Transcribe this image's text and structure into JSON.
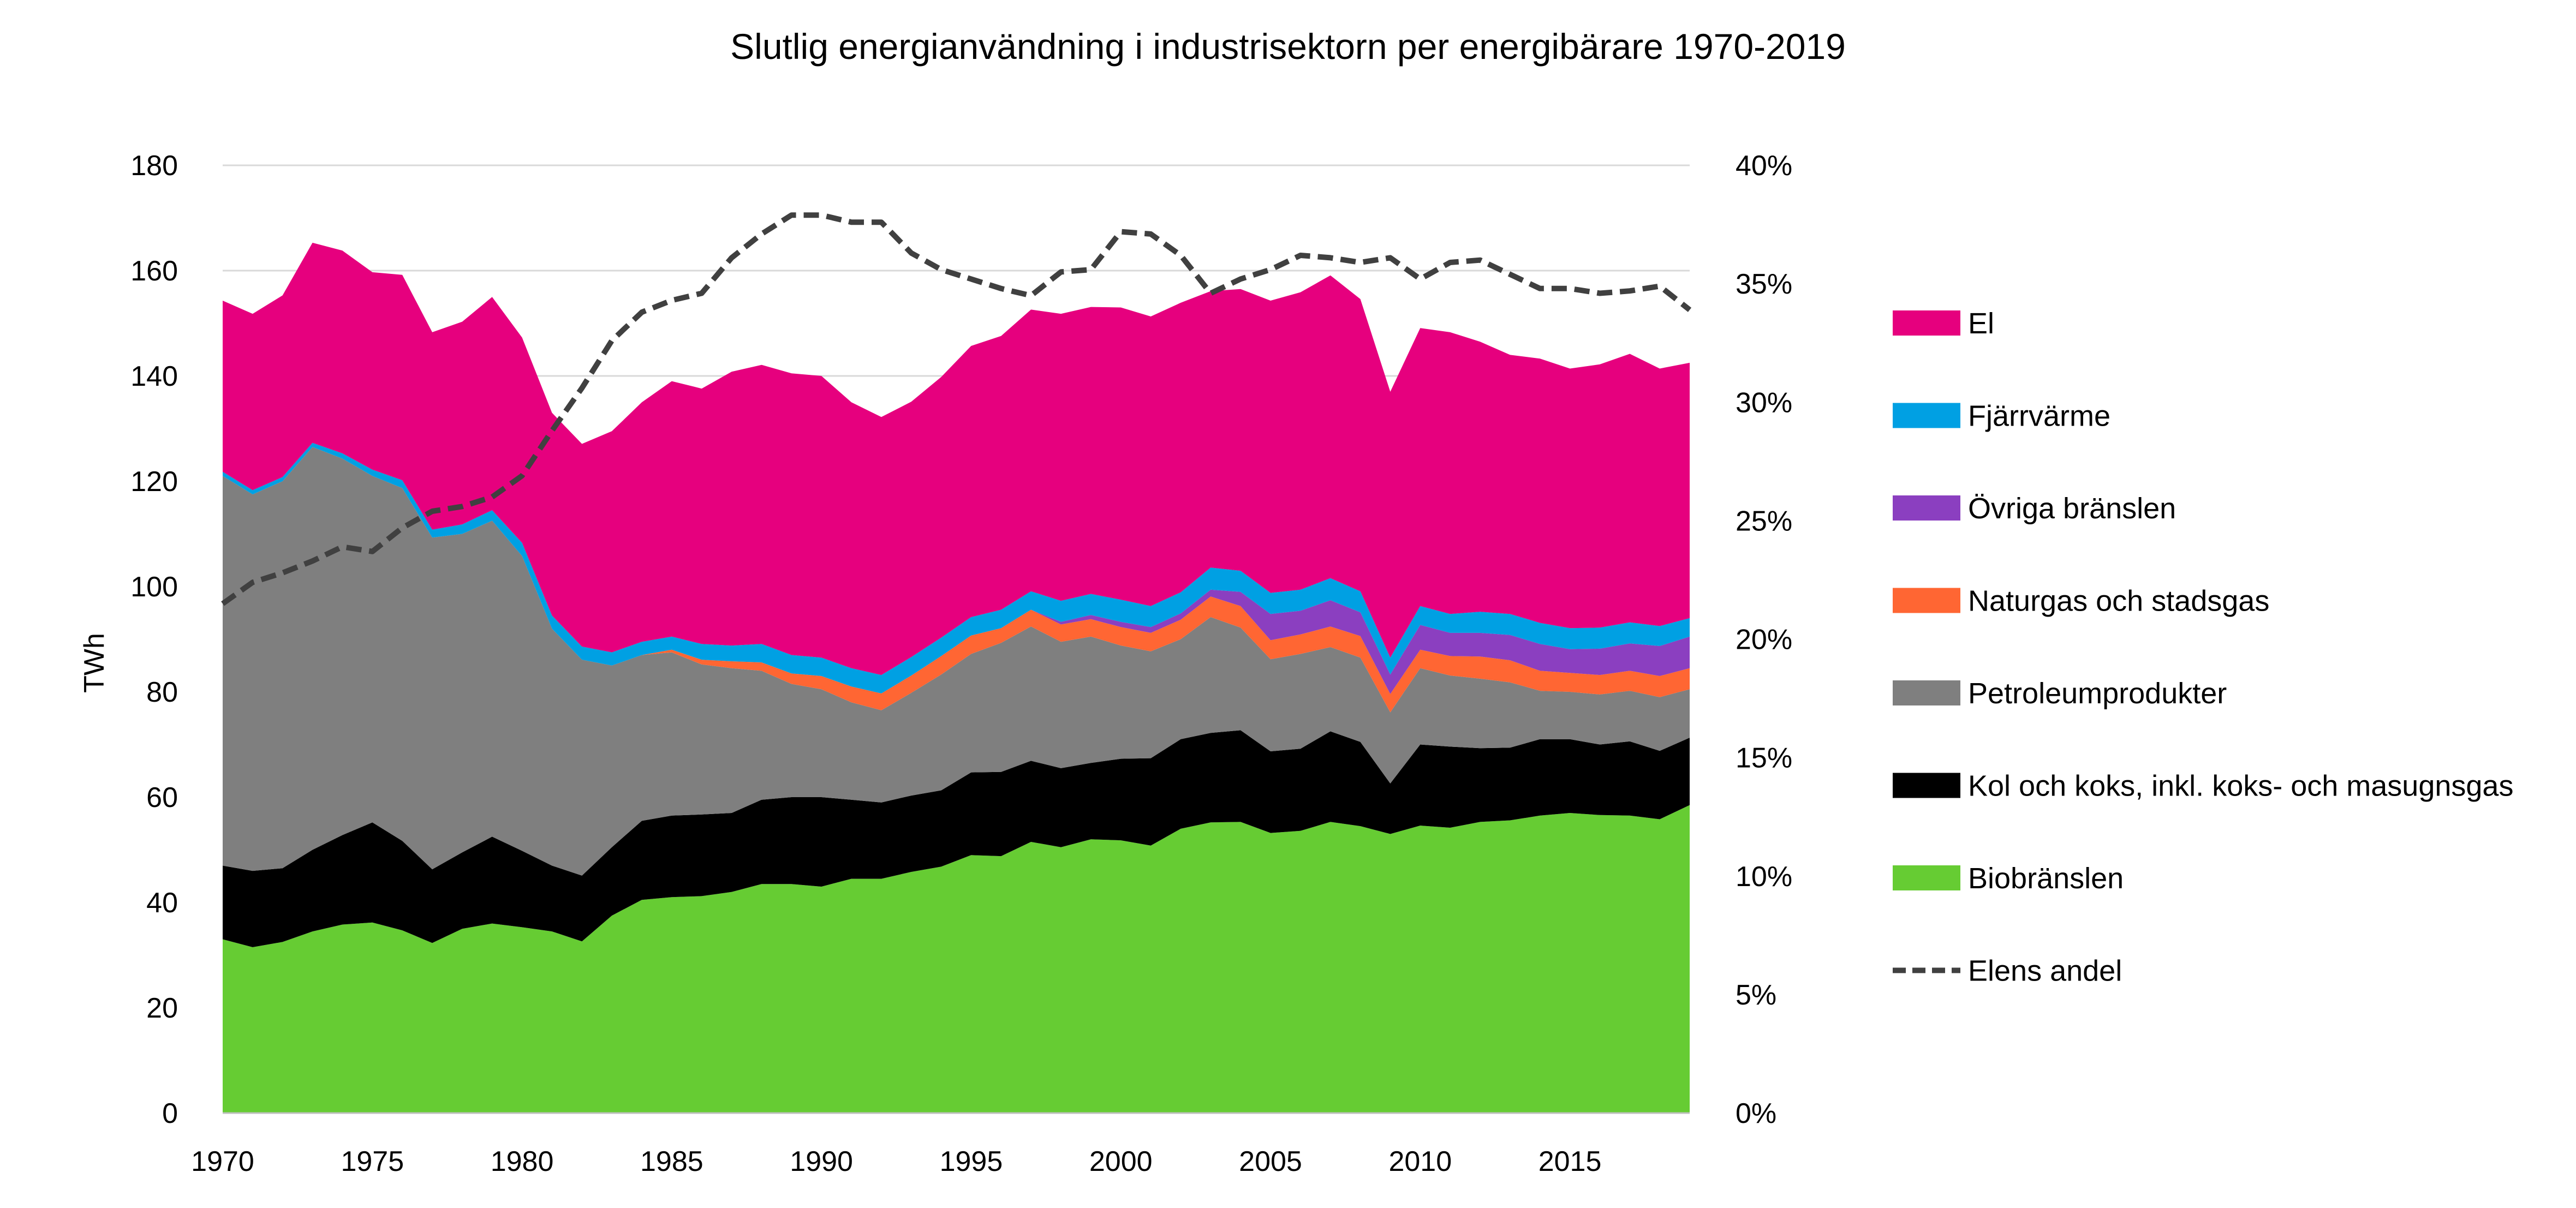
{
  "chart_data": {
    "type": "area",
    "stacked": true,
    "title": "Slutlig energianvändning i industrisektorn per energibärare 1970-2019",
    "ylabel": "TWh",
    "xlabel": "",
    "x": [
      1970,
      1971,
      1972,
      1973,
      1974,
      1975,
      1976,
      1977,
      1978,
      1979,
      1980,
      1981,
      1982,
      1983,
      1984,
      1985,
      1986,
      1987,
      1988,
      1989,
      1990,
      1991,
      1992,
      1993,
      1994,
      1995,
      1996,
      1997,
      1998,
      1999,
      2000,
      2001,
      2002,
      2003,
      2004,
      2005,
      2006,
      2007,
      2008,
      2009,
      2010,
      2011,
      2012,
      2013,
      2014,
      2015,
      2016,
      2017,
      2018,
      2019
    ],
    "xlim": [
      1970,
      2019
    ],
    "x_ticks": [
      "1970",
      "1975",
      "1980",
      "1985",
      "1990",
      "1995",
      "2000",
      "2005",
      "2010",
      "2015"
    ],
    "ylim": [
      0,
      180
    ],
    "y_ticks": [
      "0",
      "20",
      "40",
      "60",
      "80",
      "100",
      "120",
      "140",
      "160",
      "180"
    ],
    "y2lim": [
      0,
      40
    ],
    "y2_ticks": [
      "0%",
      "5%",
      "10%",
      "15%",
      "20%",
      "25%",
      "30%",
      "35%",
      "40%"
    ],
    "grid": true,
    "legend_position": "right",
    "series": [
      {
        "name": "Biobränslen",
        "color": "#66cc33",
        "values": [
          33,
          31.5,
          32.5,
          34.5,
          35.8,
          36.2,
          34.7,
          32.3,
          35,
          36,
          35.3,
          34.5,
          32.6,
          37.5,
          40.5,
          41,
          41.2,
          42,
          43.5,
          43.5,
          43,
          44.5,
          44.5,
          45.8,
          46.8,
          49,
          48.8,
          51.5,
          50.5,
          52,
          51.8,
          50.8,
          54,
          55.2,
          55.3,
          53.2,
          53.6,
          55.3,
          54.5,
          53,
          54.6,
          54.2,
          55.3,
          55.6,
          56.5,
          57,
          56.6,
          56.5,
          55.8,
          58.5
        ]
      },
      {
        "name": "Kol och koks, inkl. koks- och masugnsgas",
        "color": "#000000",
        "values": [
          14,
          14.5,
          14,
          15.5,
          17,
          19,
          17,
          14,
          14.5,
          16.5,
          14.5,
          12.5,
          12.5,
          13,
          15,
          15.5,
          15.5,
          15,
          16,
          16.5,
          17,
          15,
          14.5,
          14.5,
          14.5,
          15.7,
          16,
          15.4,
          15,
          14.5,
          15.5,
          16.6,
          17,
          17,
          17.4,
          15.5,
          15.6,
          17.2,
          16,
          9.6,
          15.4,
          15.4,
          14,
          13.8,
          14.5,
          14,
          13.4,
          14.1,
          13,
          12.8
        ]
      },
      {
        "name": "Petroleumprodukter",
        "color": "#7f7f7f",
        "values": [
          74,
          71.5,
          73.5,
          76.5,
          71.5,
          65.8,
          67,
          63,
          60.5,
          60,
          56,
          45,
          41,
          34.5,
          31.5,
          31,
          28.5,
          27.5,
          24.5,
          21.5,
          20.5,
          18.5,
          17.5,
          19.5,
          22,
          22.5,
          24.5,
          25.5,
          24,
          24,
          21.5,
          20.3,
          19,
          22,
          19.5,
          17.5,
          18,
          16,
          16,
          13.5,
          14.5,
          13.5,
          13.2,
          12.4,
          9.2,
          9,
          9.5,
          9.6,
          10.2,
          9.2
        ]
      },
      {
        "name": "Naturgas och stadsgas",
        "color": "#ff6633",
        "values": [
          0,
          0,
          0,
          0,
          0,
          0,
          0,
          0,
          0,
          0,
          0,
          0,
          0,
          0,
          0,
          0.5,
          0.9,
          1.3,
          1.6,
          2,
          2.5,
          3,
          3.2,
          3.3,
          3.5,
          3.5,
          2.8,
          3.2,
          3.3,
          3.3,
          3.5,
          3.5,
          3.7,
          3.9,
          4.1,
          3.6,
          3.7,
          3.9,
          4.1,
          3.5,
          3.5,
          3.7,
          4.2,
          4.2,
          3.8,
          3.6,
          3.7,
          3.8,
          4,
          4
        ]
      },
      {
        "name": "Övriga bränslen",
        "color": "#8b3fc0",
        "values": [
          0,
          0,
          0,
          0,
          0,
          0,
          0,
          0,
          0,
          0,
          0,
          0,
          0,
          0,
          0,
          0,
          0,
          0,
          0,
          0,
          0,
          0,
          0,
          0,
          0,
          0,
          0,
          0,
          0.5,
          0.8,
          1,
          1.1,
          1.2,
          1.3,
          2.7,
          5,
          4.5,
          5,
          4.5,
          3.7,
          4.7,
          4.4,
          4.5,
          4.8,
          5.1,
          4.5,
          5,
          5.2,
          5.7,
          6
        ]
      },
      {
        "name": "Fjärrvärme",
        "color": "#00a0e3",
        "values": [
          0.8,
          0.8,
          0.8,
          0.8,
          1,
          1.2,
          1.5,
          1.5,
          1.8,
          2,
          2.5,
          2.5,
          2.5,
          2.5,
          2.5,
          2.5,
          3,
          3,
          3.5,
          3.5,
          3.5,
          3.5,
          3.5,
          3.5,
          3.5,
          3.5,
          3.5,
          3.5,
          4,
          4,
          4.2,
          4,
          4,
          4.2,
          4,
          4,
          4,
          4.2,
          4,
          3.2,
          3.6,
          3.6,
          4,
          4,
          4,
          4,
          4,
          4,
          3.8,
          3.5
        ]
      },
      {
        "name": "El",
        "color": "#e6007e",
        "values": [
          32.5,
          33.5,
          34.5,
          38,
          38.5,
          37.5,
          39,
          37.5,
          38.5,
          40.5,
          39,
          38.5,
          38.5,
          42,
          45.5,
          48.5,
          48.5,
          52,
          53,
          53.5,
          53.5,
          50.5,
          49,
          48.5,
          49.5,
          51.5,
          52,
          53.5,
          54.5,
          54.5,
          55.5,
          55,
          55,
          52.5,
          53.5,
          55.5,
          56.5,
          57.5,
          55.5,
          50.5,
          52.8,
          53.5,
          51.3,
          49.2,
          50.2,
          49.3,
          50,
          51,
          48.9,
          48.5
        ]
      }
    ],
    "line_series": {
      "name": "Elens andel",
      "color": "#404040",
      "dash": true,
      "axis": "right",
      "values": [
        21.5,
        22.4,
        22.8,
        23.3,
        23.9,
        23.7,
        24.7,
        25.4,
        25.6,
        26.0,
        26.9,
        28.8,
        30.6,
        32.6,
        33.8,
        34.3,
        34.6,
        36.1,
        37.1,
        37.9,
        37.9,
        37.6,
        37.6,
        36.3,
        35.6,
        35.2,
        34.8,
        34.5,
        35.5,
        35.6,
        37.2,
        37.1,
        36.2,
        34.6,
        35.2,
        35.6,
        36.2,
        36.1,
        35.9,
        36.1,
        35.2,
        35.9,
        36.0,
        35.4,
        34.8,
        34.8,
        34.6,
        34.7,
        34.9,
        33.9
      ]
    },
    "legend_order": [
      "El",
      "Fjärrvärme",
      "Övriga bränslen",
      "Naturgas och stadsgas",
      "Petroleumprodukter",
      "Kol och koks, inkl. koks- och masugnsgas",
      "Biobränslen",
      "Elens andel"
    ]
  }
}
